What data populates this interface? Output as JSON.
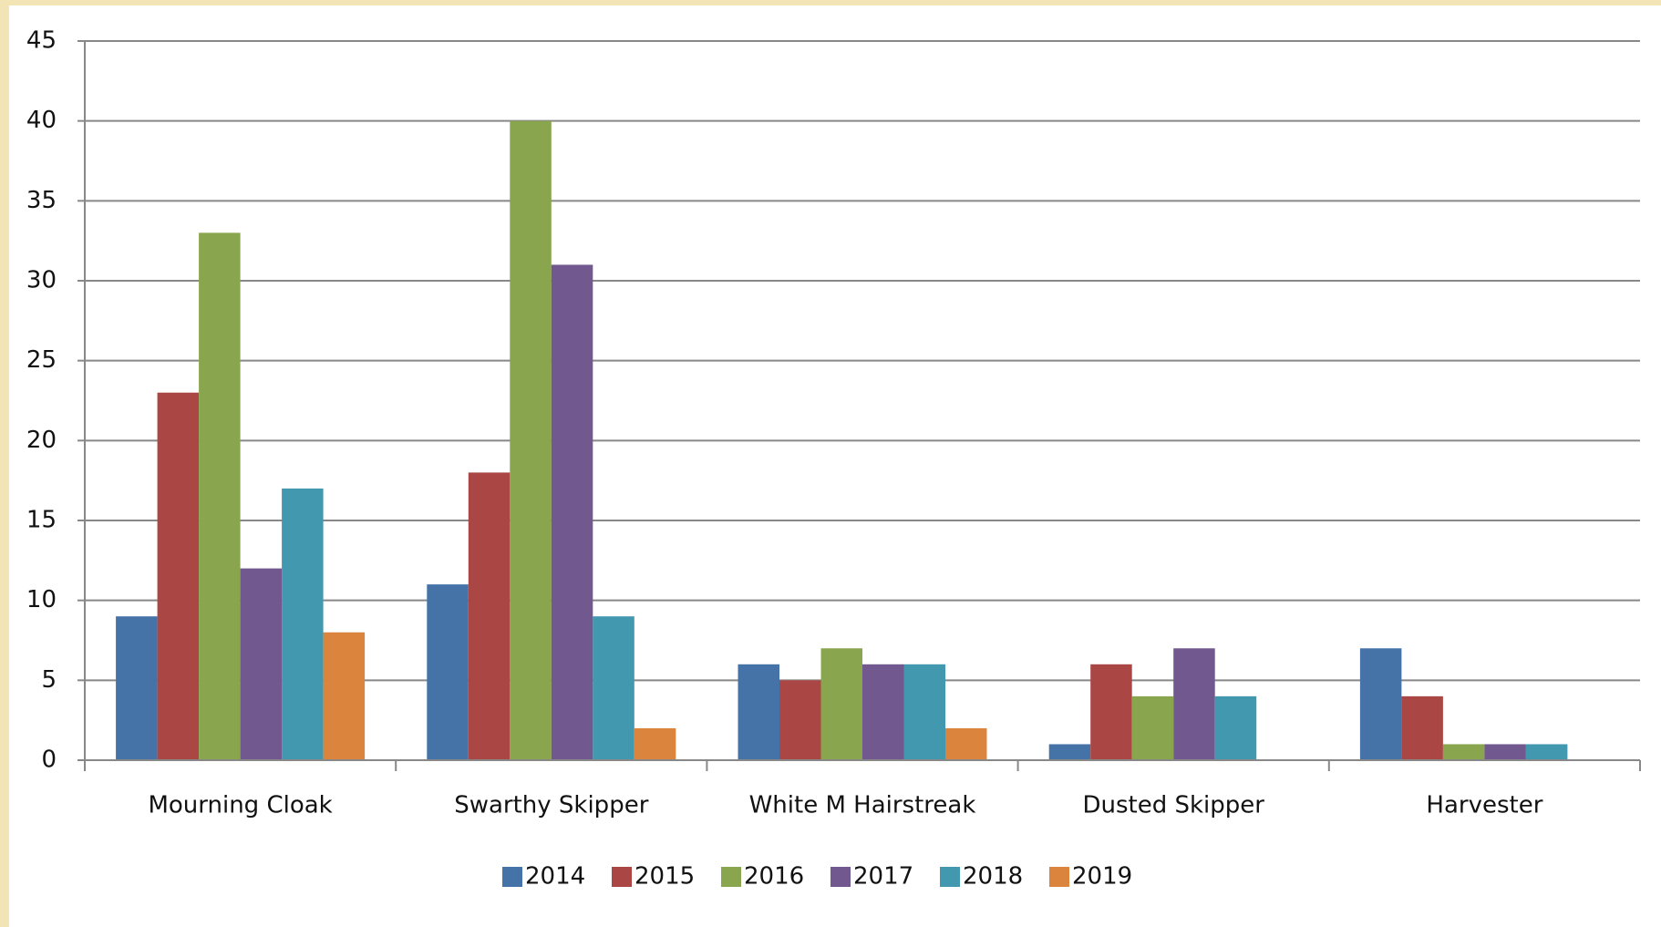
{
  "chart_data": {
    "type": "bar",
    "categories": [
      "Mourning Cloak",
      "Swarthy Skipper",
      "White M Hairstreak",
      "Dusted Skipper",
      "Harvester"
    ],
    "series": [
      {
        "name": "2014",
        "color": "#4572a7",
        "values": [
          9,
          11,
          6,
          1,
          7
        ]
      },
      {
        "name": "2015",
        "color": "#aa4643",
        "values": [
          23,
          18,
          5,
          6,
          4
        ]
      },
      {
        "name": "2016",
        "color": "#89a54e",
        "values": [
          33,
          40,
          7,
          4,
          1
        ]
      },
      {
        "name": "2017",
        "color": "#71588f",
        "values": [
          12,
          31,
          6,
          7,
          1
        ]
      },
      {
        "name": "2018",
        "color": "#4198af",
        "values": [
          17,
          9,
          6,
          4,
          1
        ]
      },
      {
        "name": "2019",
        "color": "#db843d",
        "values": [
          8,
          2,
          2,
          0,
          0
        ]
      }
    ],
    "ylim": [
      0,
      45
    ],
    "yticks": [
      0,
      5,
      10,
      15,
      20,
      25,
      30,
      35,
      40,
      45
    ],
    "grid": true,
    "legend": "bottom"
  }
}
